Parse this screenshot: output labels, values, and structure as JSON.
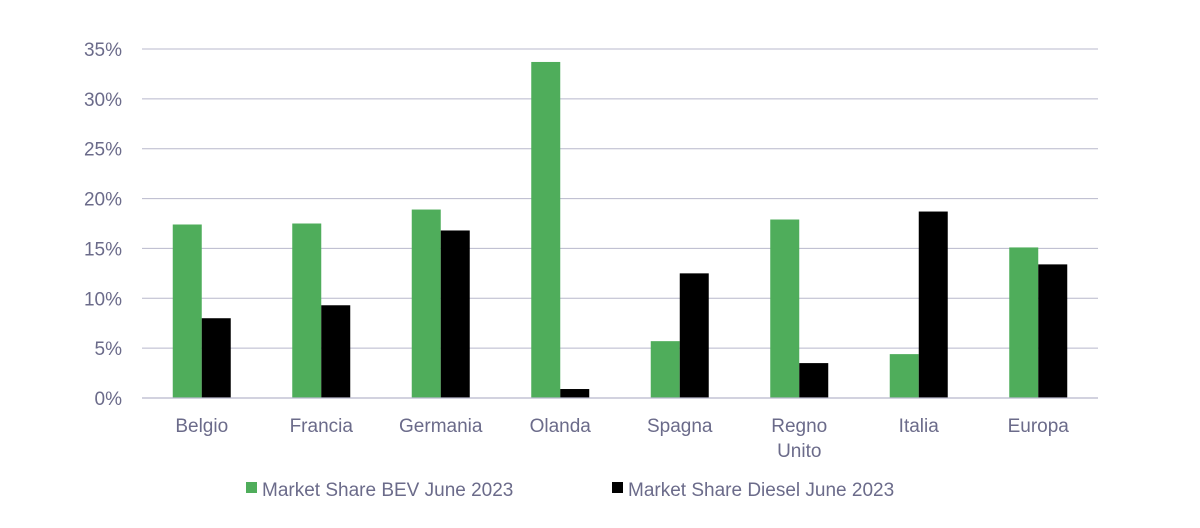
{
  "chart_data": {
    "type": "bar",
    "title": "",
    "xlabel": "",
    "ylabel": "",
    "categories": [
      [
        "Belgio"
      ],
      [
        "Francia"
      ],
      [
        "Germania"
      ],
      [
        "Olanda"
      ],
      [
        "Spagna"
      ],
      [
        "Regno",
        "Unito"
      ],
      [
        "Italia"
      ],
      [
        "Europa"
      ]
    ],
    "series": [
      {
        "name": "Market Share BEV June 2023",
        "color": "#4fad5b",
        "values": [
          17.4,
          17.5,
          18.9,
          33.7,
          5.7,
          17.9,
          4.4,
          15.1
        ]
      },
      {
        "name": "Market Share Diesel June 2023",
        "color": "#000000",
        "values": [
          8.0,
          9.3,
          16.8,
          0.9,
          12.5,
          3.5,
          18.7,
          13.4
        ]
      }
    ],
    "ylim": [
      0,
      35
    ],
    "yticks": [
      "0%",
      "5%",
      "10%",
      "15%",
      "20%",
      "25%",
      "30%",
      "35%"
    ],
    "grid": true,
    "legend_position": "bottom"
  }
}
